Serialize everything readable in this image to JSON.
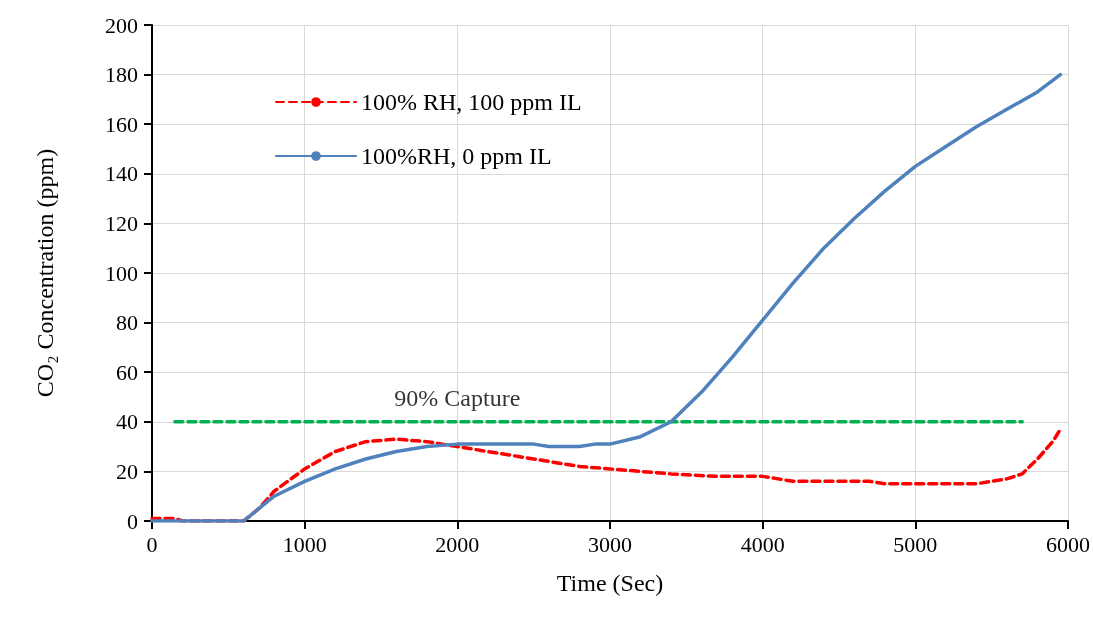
{
  "chart_data": {
    "type": "line",
    "xlabel": "Time (Sec)",
    "ylabel": "CO₂ Concentration (ppm)",
    "xlim": [
      0,
      6000
    ],
    "xticks": [
      0,
      1000,
      2000,
      3000,
      4000,
      5000,
      6000
    ],
    "ylim": [
      0,
      200
    ],
    "yticks": [
      0,
      20,
      40,
      60,
      80,
      100,
      120,
      140,
      160,
      180,
      200
    ],
    "grid": true,
    "legend": "top left",
    "marker": "none",
    "series": [
      {
        "name": "100% RH, 100 ppm IL",
        "color": "#ff0000",
        "line_style": "dashed",
        "x": [
          0,
          150,
          200,
          550,
          600,
          700,
          800,
          1000,
          1200,
          1400,
          1600,
          1800,
          2000,
          2200,
          2400,
          2600,
          2800,
          3000,
          3400,
          3700,
          4000,
          4200,
          4500,
          4700,
          4800,
          5000,
          5400,
          5600,
          5700,
          5800,
          5900,
          5950
        ],
        "values": [
          1,
          1,
          0,
          0,
          0,
          5,
          12,
          21,
          28,
          32,
          33,
          32,
          30,
          28,
          26,
          24,
          22,
          21,
          19,
          18,
          18,
          16,
          16,
          16,
          15,
          15,
          15,
          17,
          19,
          25,
          32,
          37
        ]
      },
      {
        "name": "100%RH, 0 ppm IL",
        "color": "#4f81bd",
        "line_style": "solid",
        "x": [
          0,
          600,
          800,
          1000,
          1200,
          1400,
          1600,
          1800,
          2000,
          2500,
          2600,
          2800,
          2900,
          3000,
          3200,
          3400,
          3600,
          3800,
          4000,
          4200,
          4400,
          4600,
          4800,
          5000,
          5200,
          5400,
          5600,
          5800,
          5950
        ],
        "values": [
          0,
          0,
          10,
          16,
          21,
          25,
          28,
          30,
          31,
          31,
          30,
          30,
          31,
          31,
          34,
          40,
          52,
          66,
          81,
          96,
          110,
          122,
          133,
          143,
          151,
          159,
          166,
          173,
          180
        ]
      },
      {
        "color": "#00b050",
        "line_style": "dashed",
        "x": [
          150,
          5700
        ],
        "values": [
          40,
          40
        ]
      }
    ],
    "annotations": [
      {
        "text": "90% Capture",
        "x": 2000,
        "y": 40
      }
    ]
  }
}
